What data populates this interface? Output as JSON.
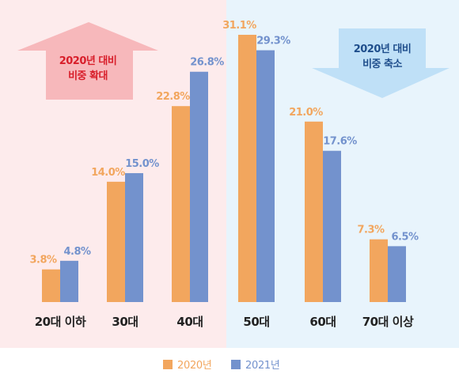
{
  "chart_data": {
    "type": "bar",
    "categories": [
      "20대 이하",
      "30대",
      "40대",
      "50대",
      "60대",
      "70대 이상"
    ],
    "series": [
      {
        "name": "2020년",
        "color": "#F2A65E",
        "values": [
          3.8,
          14.0,
          22.8,
          31.1,
          21.0,
          7.3
        ],
        "labels": [
          "3.8%",
          "14.0%",
          "22.8%",
          "31.1%",
          "21.0%",
          "7.3%"
        ]
      },
      {
        "name": "2021년",
        "color": "#7392CD",
        "values": [
          4.8,
          15.0,
          26.8,
          29.3,
          17.6,
          6.5
        ],
        "labels": [
          "4.8%",
          "15.0%",
          "26.8%",
          "29.3%",
          "17.6%",
          "6.5%"
        ]
      }
    ],
    "ylim": [
      0,
      33
    ],
    "legend_position": "bottom",
    "annotations": {
      "increase": {
        "lines": [
          "2020년 대비",
          "비중 확대"
        ],
        "color": "#D81E2A",
        "fill": "#F7B8BB",
        "direction": "up"
      },
      "decrease": {
        "lines": [
          "2020년 대비",
          "비중 축소"
        ],
        "color": "#1F4E8C",
        "fill": "#BFE0F7",
        "direction": "down"
      }
    },
    "regions": {
      "left_fill": "#FDEBEC",
      "right_fill": "#E8F4FC"
    }
  }
}
